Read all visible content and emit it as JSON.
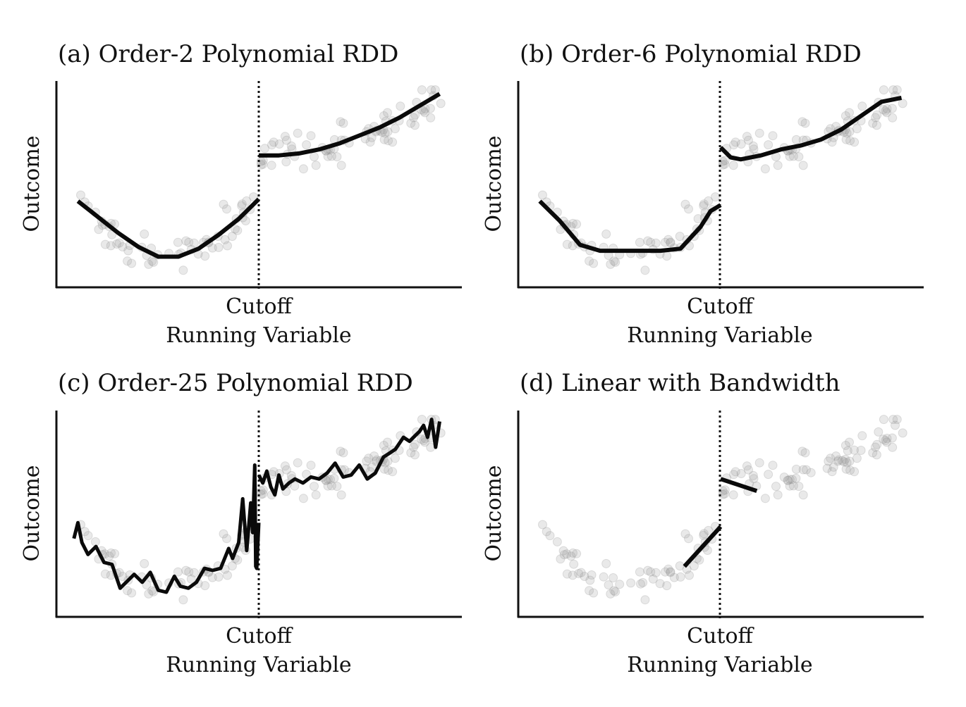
{
  "chart_data": [
    {
      "type": "scatter",
      "title": "(a) Order-2 Polynomial RDD",
      "xlabel": "Running Variable",
      "ylabel": "Outcome",
      "x_ticks": [
        {
          "x": 0,
          "label": "Cutoff"
        }
      ],
      "xlim": [
        -1,
        1
      ],
      "ylim": [
        0,
        10
      ],
      "cutoff": 0,
      "fits": [
        {
          "x": [
            -0.9,
            -0.8,
            -0.7,
            -0.6,
            -0.5,
            -0.4,
            -0.3,
            -0.2,
            -0.1,
            0.0
          ],
          "y": [
            4.2,
            3.4,
            2.6,
            1.9,
            1.4,
            1.4,
            1.8,
            2.5,
            3.3,
            4.3
          ]
        },
        {
          "x": [
            0.0,
            0.1,
            0.2,
            0.3,
            0.4,
            0.5,
            0.6,
            0.7,
            0.8,
            0.9
          ],
          "y": [
            6.5,
            6.5,
            6.6,
            6.8,
            7.1,
            7.5,
            7.9,
            8.4,
            9.0,
            9.6
          ]
        }
      ]
    },
    {
      "type": "scatter",
      "title": "(b) Order-6 Polynomial RDD",
      "xlabel": "Running Variable",
      "ylabel": "Outcome",
      "x_ticks": [
        {
          "x": 0,
          "label": "Cutoff"
        }
      ],
      "xlim": [
        -1,
        1
      ],
      "ylim": [
        0,
        10
      ],
      "cutoff": 0,
      "fits": [
        {
          "x": [
            -0.9,
            -0.8,
            -0.7,
            -0.6,
            -0.5,
            -0.4,
            -0.3,
            -0.2,
            -0.1,
            -0.05,
            0.0
          ],
          "y": [
            4.2,
            3.2,
            2.0,
            1.7,
            1.7,
            1.7,
            1.7,
            1.8,
            2.9,
            3.7,
            4.0
          ]
        },
        {
          "x": [
            0.0,
            0.05,
            0.1,
            0.2,
            0.3,
            0.4,
            0.5,
            0.6,
            0.7,
            0.8,
            0.9
          ],
          "y": [
            6.9,
            6.4,
            6.3,
            6.5,
            6.8,
            7.0,
            7.3,
            7.8,
            8.5,
            9.2,
            9.4
          ]
        }
      ]
    },
    {
      "type": "scatter",
      "title": "(c) Order-25 Polynomial RDD",
      "xlabel": "Running Variable",
      "ylabel": "Outcome",
      "x_ticks": [
        {
          "x": 0,
          "label": "Cutoff"
        }
      ],
      "xlim": [
        -1,
        1
      ],
      "ylim": [
        0,
        10
      ],
      "cutoff": 0,
      "fits": [
        {
          "x": [
            -0.92,
            -0.9,
            -0.88,
            -0.85,
            -0.81,
            -0.77,
            -0.73,
            -0.69,
            -0.66,
            -0.62,
            -0.58,
            -0.54,
            -0.5,
            -0.46,
            -0.42,
            -0.39,
            -0.35,
            -0.31,
            -0.27,
            -0.23,
            -0.19,
            -0.15,
            -0.13,
            -0.1,
            -0.08,
            -0.06,
            -0.04,
            -0.03,
            -0.02,
            -0.015,
            -0.01,
            0.0
          ],
          "y": [
            3.8,
            4.6,
            3.6,
            3.0,
            3.4,
            2.6,
            2.5,
            1.3,
            1.6,
            2.0,
            1.6,
            2.1,
            1.2,
            1.1,
            1.9,
            1.4,
            1.3,
            1.6,
            2.3,
            2.2,
            2.3,
            3.3,
            2.8,
            3.6,
            5.8,
            3.2,
            5.6,
            4.1,
            7.5,
            2.4,
            2.3,
            4.6
          ]
        },
        {
          "x": [
            0.0,
            0.02,
            0.04,
            0.06,
            0.08,
            0.1,
            0.12,
            0.15,
            0.18,
            0.22,
            0.26,
            0.3,
            0.34,
            0.38,
            0.42,
            0.46,
            0.5,
            0.54,
            0.58,
            0.62,
            0.65,
            0.68,
            0.72,
            0.75,
            0.78,
            0.8,
            0.82,
            0.84,
            0.86,
            0.88,
            0.9
          ],
          "y": [
            7.0,
            6.6,
            7.2,
            6.4,
            6.0,
            7.0,
            6.3,
            6.6,
            6.8,
            6.6,
            6.9,
            6.8,
            7.1,
            7.6,
            6.9,
            7.0,
            7.5,
            6.8,
            7.1,
            7.9,
            8.1,
            8.3,
            8.9,
            8.7,
            9.0,
            9.2,
            9.5,
            8.9,
            9.8,
            8.4,
            9.7
          ]
        }
      ]
    },
    {
      "type": "scatter",
      "title": "(d) Linear with Bandwidth",
      "xlabel": "Running Variable",
      "ylabel": "Outcome",
      "x_ticks": [
        {
          "x": 0,
          "label": "Cutoff"
        }
      ],
      "xlim": [
        -1,
        1
      ],
      "ylim": [
        0,
        10
      ],
      "cutoff": 0,
      "fits": [
        {
          "x": [
            -0.18,
            0.0
          ],
          "y": [
            2.4,
            4.4
          ]
        },
        {
          "x": [
            0.0,
            0.18
          ],
          "y": [
            6.8,
            6.2
          ]
        }
      ]
    }
  ]
}
